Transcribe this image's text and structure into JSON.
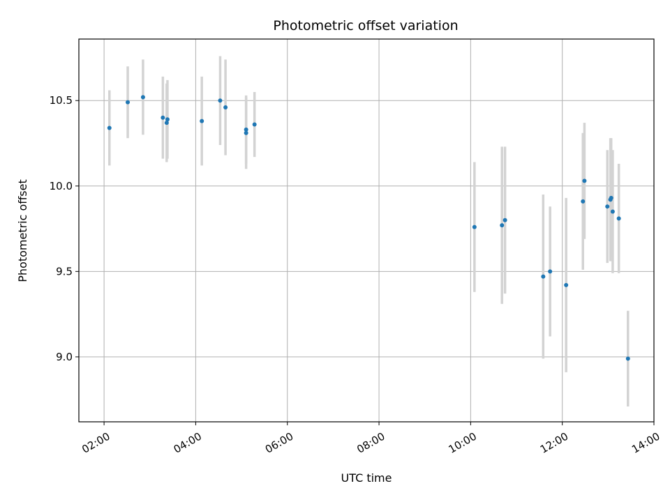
{
  "chart_data": {
    "type": "scatter",
    "title": "Photometric offset variation",
    "xlabel": "UTC time",
    "ylabel": "Photometric offset",
    "x_ticks": [
      "02:00",
      "04:00",
      "06:00",
      "08:00",
      "10:00",
      "12:00",
      "14:00"
    ],
    "y_ticks": [
      "9.0",
      "9.5",
      "10.0",
      "10.5"
    ],
    "xlim": [
      "01:27",
      "14:00"
    ],
    "ylim": [
      8.62,
      10.86
    ],
    "grid": true,
    "colors": {
      "point": "#1f77b4",
      "errorbar": "#d3d3d3",
      "grid": "#b0b0b0"
    },
    "points": [
      {
        "x": "02:07",
        "y": 10.34,
        "err": 0.22
      },
      {
        "x": "02:31",
        "y": 10.49,
        "err": 0.21
      },
      {
        "x": "02:51",
        "y": 10.52,
        "err": 0.22
      },
      {
        "x": "03:17",
        "y": 10.4,
        "err": 0.24
      },
      {
        "x": "03:22",
        "y": 10.37,
        "err": 0.23
      },
      {
        "x": "03:23",
        "y": 10.39,
        "err": 0.23
      },
      {
        "x": "04:08",
        "y": 10.38,
        "err": 0.26
      },
      {
        "x": "04:32",
        "y": 10.5,
        "err": 0.26
      },
      {
        "x": "04:39",
        "y": 10.46,
        "err": 0.28
      },
      {
        "x": "05:06",
        "y": 10.33,
        "err": 0.2
      },
      {
        "x": "05:06",
        "y": 10.31,
        "err": 0.21
      },
      {
        "x": "05:17",
        "y": 10.36,
        "err": 0.19
      },
      {
        "x": "10:05",
        "y": 9.76,
        "err": 0.38
      },
      {
        "x": "10:41",
        "y": 9.77,
        "err": 0.46
      },
      {
        "x": "10:45",
        "y": 9.8,
        "err": 0.43
      },
      {
        "x": "11:35",
        "y": 9.47,
        "err": 0.48
      },
      {
        "x": "11:44",
        "y": 9.5,
        "err": 0.38
      },
      {
        "x": "12:05",
        "y": 9.42,
        "err": 0.51
      },
      {
        "x": "12:27",
        "y": 9.91,
        "err": 0.4
      },
      {
        "x": "12:29",
        "y": 10.03,
        "err": 0.34
      },
      {
        "x": "12:59",
        "y": 9.88,
        "err": 0.33
      },
      {
        "x": "13:03",
        "y": 9.92,
        "err": 0.36
      },
      {
        "x": "13:04",
        "y": 9.93,
        "err": 0.35
      },
      {
        "x": "13:06",
        "y": 9.85,
        "err": 0.36
      },
      {
        "x": "13:14",
        "y": 9.81,
        "err": 0.32
      },
      {
        "x": "13:26",
        "y": 8.99,
        "err": 0.28
      }
    ]
  }
}
